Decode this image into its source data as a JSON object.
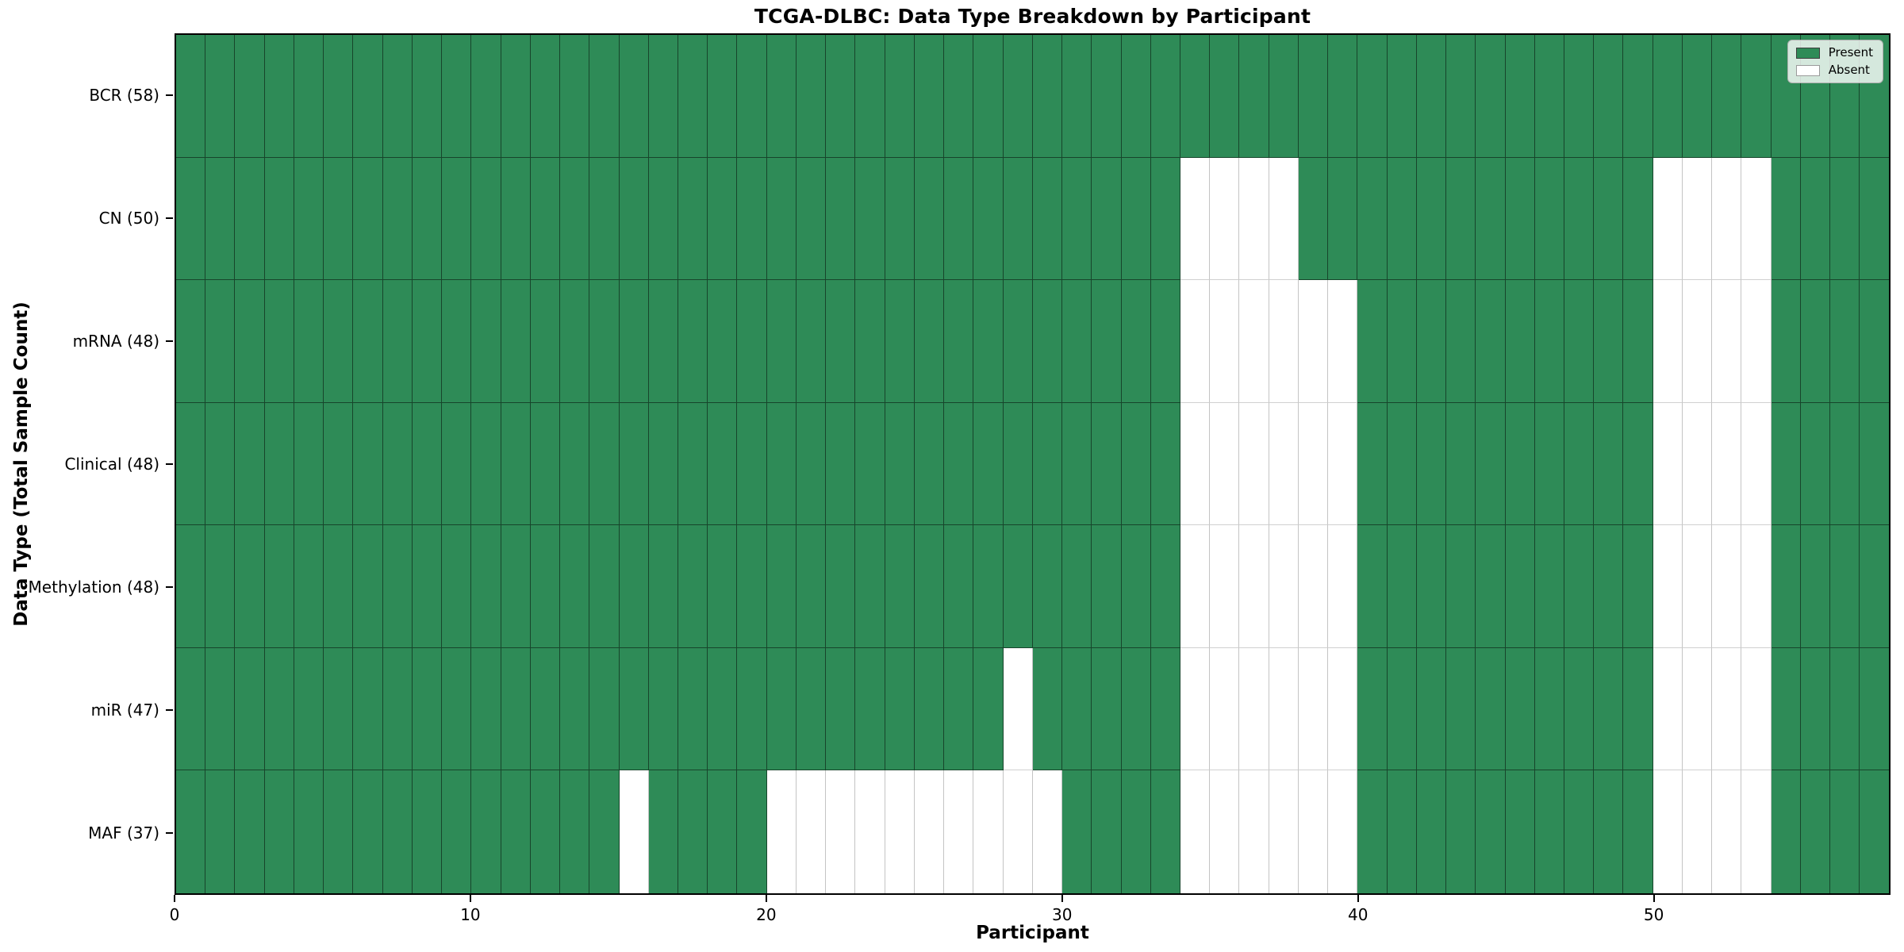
{
  "chart_data": {
    "type": "heatmap",
    "title": "TCGA-DLBC: Data Type Breakdown by Participant",
    "xlabel": "Participant",
    "ylabel": "Data Type (Total Sample Count)",
    "x_axis": {
      "range": [
        0,
        58
      ],
      "ticks": [
        0,
        10,
        20,
        30,
        40,
        50
      ]
    },
    "n_participants": 58,
    "legend": {
      "position": "upper-right",
      "items": [
        {
          "label": "Present",
          "color": "#2e8b57"
        },
        {
          "label": "Absent",
          "color": "#ffffff"
        }
      ]
    },
    "colors": {
      "present": "#2e8b57",
      "absent": "#ffffff",
      "edge_on_present": "rgba(0,0,0,0.5)",
      "edge_on_absent": "#c4c4c4"
    },
    "rows": [
      {
        "label": "BCR (58)",
        "data_type": "BCR",
        "total_samples": 58,
        "absent_participants": []
      },
      {
        "label": "CN (50)",
        "data_type": "CN",
        "total_samples": 50,
        "absent_participants": [
          34,
          35,
          36,
          37,
          50,
          51,
          52,
          53
        ]
      },
      {
        "label": "mRNA (48)",
        "data_type": "mRNA",
        "total_samples": 48,
        "absent_participants": [
          34,
          35,
          36,
          37,
          38,
          39,
          50,
          51,
          52,
          53
        ]
      },
      {
        "label": "Clinical (48)",
        "data_type": "Clinical",
        "total_samples": 48,
        "absent_participants": [
          34,
          35,
          36,
          37,
          38,
          39,
          50,
          51,
          52,
          53
        ]
      },
      {
        "label": "Methylation (48)",
        "data_type": "Methylation",
        "total_samples": 48,
        "absent_participants": [
          34,
          35,
          36,
          37,
          38,
          39,
          50,
          51,
          52,
          53
        ]
      },
      {
        "label": "miR (47)",
        "data_type": "miR",
        "total_samples": 47,
        "absent_participants": [
          28,
          34,
          35,
          36,
          37,
          38,
          39,
          50,
          51,
          52,
          53
        ]
      },
      {
        "label": "MAF (37)",
        "data_type": "MAF",
        "total_samples": 37,
        "absent_participants": [
          15,
          20,
          21,
          22,
          23,
          24,
          25,
          26,
          27,
          28,
          29,
          34,
          35,
          36,
          37,
          38,
          39,
          50,
          51,
          52,
          53
        ]
      }
    ]
  }
}
